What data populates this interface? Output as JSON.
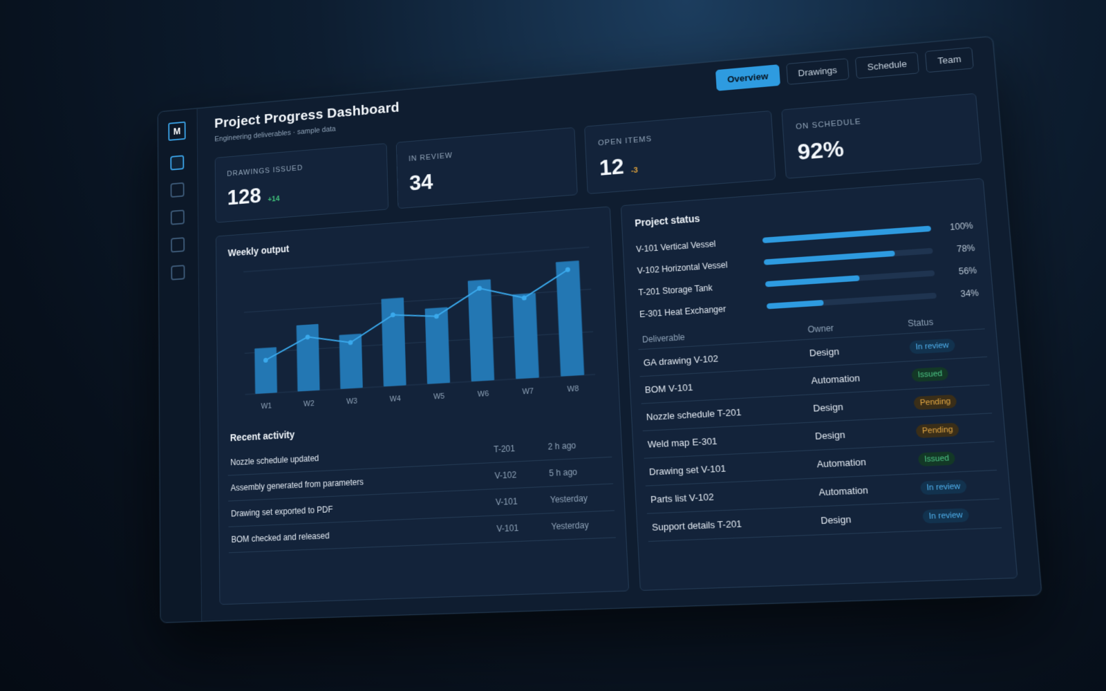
{
  "app": {
    "logo_letter": "M",
    "title": "Project Progress Dashboard",
    "subtitle": "Engineering deliverables · sample data"
  },
  "sidebar": {
    "icons": [
      "dashboard-icon",
      "drawings-icon",
      "schedule-icon",
      "team-icon",
      "settings-icon"
    ]
  },
  "tabs": [
    {
      "label": "Overview",
      "active": true
    },
    {
      "label": "Drawings",
      "active": false
    },
    {
      "label": "Schedule",
      "active": false
    },
    {
      "label": "Team",
      "active": false
    }
  ],
  "kpis": [
    {
      "label": "DRAWINGS ISSUED",
      "value": "128",
      "delta": "+14"
    },
    {
      "label": "IN REVIEW",
      "value": "34",
      "delta": ""
    },
    {
      "label": "OPEN ITEMS",
      "value": "12",
      "delta": "-3"
    },
    {
      "label": "ON SCHEDULE",
      "value": "92%",
      "delta": ""
    }
  ],
  "weekly_output": {
    "title": "Weekly output"
  },
  "chart_data": {
    "type": "bar",
    "categories": [
      "W1",
      "W2",
      "W3",
      "W4",
      "W5",
      "W6",
      "W7",
      "W8"
    ],
    "series": [
      {
        "values": [
          11,
          16,
          13,
          21,
          18,
          24,
          20,
          27
        ]
      },
      {
        "values": [
          8,
          13,
          11,
          17,
          16,
          22,
          19,
          25
        ]
      }
    ],
    "ylim": [
      0,
      30
    ],
    "grid": true,
    "colors": {
      "bar": "#2377b3",
      "line": "#3aa9ec"
    }
  },
  "recent_activity": {
    "title": "Recent activity",
    "rows": [
      {
        "text": "Nozzle schedule updated",
        "code": "T-201",
        "time": "2 h ago"
      },
      {
        "text": "Assembly generated from parameters",
        "code": "V-102",
        "time": "5 h ago"
      },
      {
        "text": "Drawing set exported to PDF",
        "code": "V-101",
        "time": "Yesterday"
      },
      {
        "text": "BOM checked and released",
        "code": "V-101",
        "time": "Yesterday"
      }
    ]
  },
  "project_status": {
    "title": "Project status",
    "items": [
      {
        "name": "V-101 Vertical Vessel",
        "pct_label": "100%",
        "progress": 1.0
      },
      {
        "name": "V-102 Horizontal Vessel",
        "pct_label": "78%",
        "progress": 0.78
      },
      {
        "name": "T-201 Storage Tank",
        "pct_label": "56%",
        "progress": 0.56
      },
      {
        "name": "E-301 Heat Exchanger",
        "pct_label": "34%",
        "progress": 0.34
      }
    ]
  },
  "deliverables": {
    "headers": [
      "Deliverable",
      "Owner",
      "Status"
    ],
    "rows": [
      {
        "name": "GA drawing V-102",
        "owner": "Design",
        "status": "In review",
        "kind": "review"
      },
      {
        "name": "BOM V-101",
        "owner": "Automation",
        "status": "Issued",
        "kind": "issued"
      },
      {
        "name": "Nozzle schedule T-201",
        "owner": "Design",
        "status": "Pending",
        "kind": "pending"
      },
      {
        "name": "Weld map E-301",
        "owner": "Design",
        "status": "Pending",
        "kind": "pending"
      },
      {
        "name": "Drawing set V-101",
        "owner": "Automation",
        "status": "Issued",
        "kind": "issued"
      },
      {
        "name": "Parts list V-102",
        "owner": "Automation",
        "status": "In review",
        "kind": "review"
      },
      {
        "name": "Support details T-201",
        "owner": "Design",
        "status": "In review",
        "kind": "review"
      }
    ]
  },
  "colors": {
    "accent": "#2e9be0",
    "background": "#0f1d30",
    "card": "#13233a",
    "positive": "#3fc07a",
    "warning": "#e2a43c"
  }
}
